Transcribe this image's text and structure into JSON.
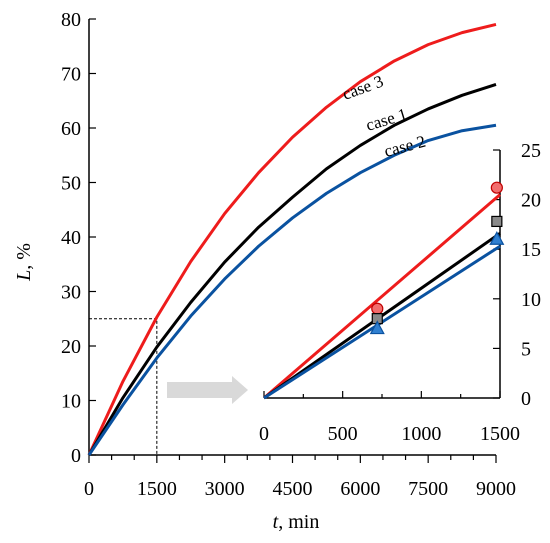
{
  "chart_data": [
    {
      "type": "line",
      "xlabel": "t, min",
      "ylabel": "L, %",
      "xlim": [
        0,
        9000
      ],
      "ylim": [
        0,
        80
      ],
      "xticks": [
        0,
        1500,
        3000,
        4500,
        6000,
        7500,
        9000
      ],
      "yticks": [
        0,
        10,
        20,
        30,
        40,
        50,
        60,
        70,
        80
      ],
      "series": [
        {
          "name": "case 3",
          "color": "#ee1c1c",
          "x": [
            0,
            750,
            1500,
            2250,
            3000,
            3750,
            4500,
            5250,
            6000,
            6750,
            7500,
            8250,
            9000
          ],
          "y": [
            0,
            13.5,
            25.3,
            35.5,
            44.3,
            51.8,
            58.3,
            63.8,
            68.5,
            72.3,
            75.3,
            77.5,
            79.0
          ]
        },
        {
          "name": "case 1",
          "color": "#000000",
          "x": [
            0,
            750,
            1500,
            2250,
            3000,
            3750,
            4500,
            5250,
            6000,
            6750,
            7500,
            8250,
            9000
          ],
          "y": [
            0,
            10.5,
            19.8,
            28.0,
            35.4,
            41.8,
            47.3,
            52.5,
            56.8,
            60.5,
            63.5,
            66.0,
            68.0
          ]
        },
        {
          "name": "case 2",
          "color": "#0a52a0",
          "x": [
            0,
            750,
            1500,
            2250,
            3000,
            3750,
            4500,
            5250,
            6000,
            6750,
            7500,
            8250,
            9000
          ],
          "y": [
            0,
            9.2,
            17.8,
            25.5,
            32.3,
            38.3,
            43.5,
            48.0,
            51.8,
            55.0,
            57.7,
            59.5,
            60.5
          ]
        }
      ],
      "zoom_box": {
        "x": [
          0,
          1500
        ],
        "y": [
          0,
          25
        ]
      }
    },
    {
      "type": "line",
      "xlim": [
        0,
        1500
      ],
      "ylim": [
        0,
        25
      ],
      "xticks": [
        0,
        500,
        1000,
        1500
      ],
      "yticks": [
        0,
        5,
        10,
        15,
        20,
        25
      ],
      "series": [
        {
          "name": "case 3",
          "color": "#ee1c1c",
          "x": [
            0,
            1500
          ],
          "y": [
            0,
            20.5
          ]
        },
        {
          "name": "case 1",
          "color": "#000000",
          "x": [
            0,
            1500
          ],
          "y": [
            0,
            16.6
          ]
        },
        {
          "name": "case 2",
          "color": "#0a52a0",
          "x": [
            0,
            1500
          ],
          "y": [
            0,
            15.3
          ]
        }
      ],
      "markers": [
        {
          "series": "case 3",
          "shape": "circle",
          "fill": "#f26d6d",
          "stroke": "#c00000",
          "x": [
            720,
            1480
          ],
          "y": [
            9.0,
            21.2
          ]
        },
        {
          "series": "case 1",
          "shape": "square",
          "fill": "#8a8a8a",
          "stroke": "#000000",
          "x": [
            720,
            1480
          ],
          "y": [
            8.0,
            17.8
          ]
        },
        {
          "series": "case 2",
          "shape": "triangle",
          "fill": "#2f7fd0",
          "stroke": "#0a52a0",
          "x": [
            720,
            1480
          ],
          "y": [
            7.0,
            16.0
          ]
        }
      ]
    }
  ],
  "labels": {
    "ylabel_italic": "L",
    "ylabel_rest": ", %",
    "xlabel_italic": "t",
    "xlabel_rest": ", min",
    "case3": "case 3",
    "case1": "case 1",
    "case2": "case 2"
  }
}
